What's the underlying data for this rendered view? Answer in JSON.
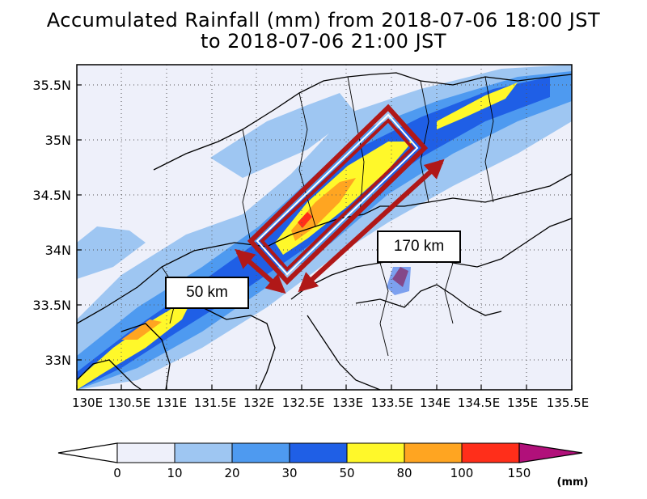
{
  "map": {
    "title_line1": "Accumulated Rainfall (mm) from 2018-07-06 18:00 JST",
    "title_line2": "to 2018-07-06 21:00 JST",
    "lat_labels": [
      "35.5N",
      "35N",
      "34.5N",
      "34N",
      "33.5N",
      "33N"
    ],
    "lon_labels": [
      "130E",
      "130.5E",
      "131E",
      "131.5E",
      "132E",
      "132.5E",
      "133E",
      "133.5E",
      "134E",
      "134.5E",
      "135E",
      "135.5E"
    ],
    "extent": {
      "lon": [
        130,
        135.5
      ],
      "lat": [
        32.7,
        35.7
      ]
    },
    "annotations": {
      "length_label": "170 km",
      "width_label": "50 km",
      "box_color": "#b01818"
    }
  },
  "legend": {
    "ticks": [
      "0",
      "10",
      "20",
      "30",
      "50",
      "80",
      "100",
      "150"
    ],
    "unit": "(mm)",
    "colors": [
      "#eef0fa",
      "#9ec6f2",
      "#4e9af0",
      "#1f5fe6",
      "#fff82a",
      "#ffa521",
      "#ff2e1a",
      "#b1107a"
    ]
  }
}
